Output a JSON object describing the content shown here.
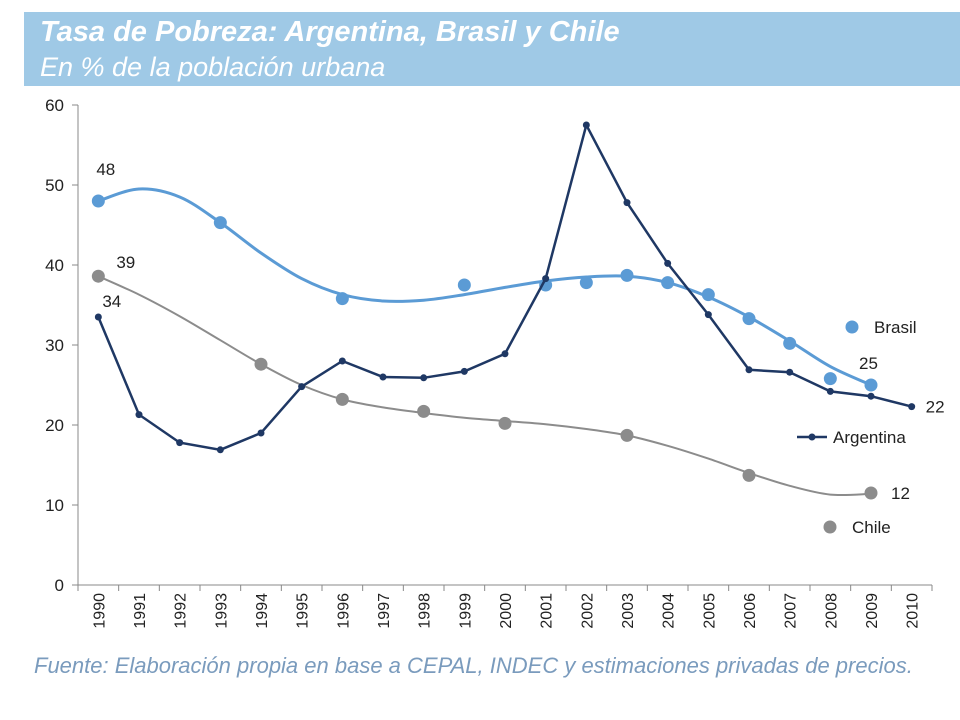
{
  "header": {
    "title": "Tasa de Pobreza: Argentina, Brasil y Chile",
    "subtitle": "En % de la población urbana"
  },
  "footer": {
    "source": "Fuente: Elaboración propia en base a CEPAL, INDEC y estimaciones privadas de precios."
  },
  "colors": {
    "header_bg": "#9fc9e6",
    "brasil": "#5b9bd5",
    "argentina": "#1f3864",
    "chile": "#8c8c8c",
    "source_text": "#7a9bbd"
  },
  "chart_data": {
    "type": "line",
    "xlabel": "",
    "ylabel": "",
    "ylim": [
      0,
      60
    ],
    "yticks": [
      0,
      10,
      20,
      30,
      40,
      50,
      60
    ],
    "x": [
      "1990",
      "1991",
      "1992",
      "1993",
      "1994",
      "1995",
      "1996",
      "1997",
      "1998",
      "1999",
      "2000",
      "2001",
      "2002",
      "2003",
      "2004",
      "2005",
      "2006",
      "2007",
      "2008",
      "2009",
      "2010"
    ],
    "grid": false,
    "series": [
      {
        "name": "Brasil",
        "style": "dots-with-smooth-trend",
        "color": "#5b9bd5",
        "points": [
          {
            "x": "1990",
            "y": 48
          },
          {
            "x": "1993",
            "y": 45.3
          },
          {
            "x": "1996",
            "y": 35.8
          },
          {
            "x": "1999",
            "y": 37.5
          },
          {
            "x": "2001",
            "y": 37.5
          },
          {
            "x": "2002",
            "y": 37.8
          },
          {
            "x": "2003",
            "y": 38.7
          },
          {
            "x": "2004",
            "y": 37.8
          },
          {
            "x": "2005",
            "y": 36.3
          },
          {
            "x": "2006",
            "y": 33.3
          },
          {
            "x": "2007",
            "y": 30.2
          },
          {
            "x": "2008",
            "y": 25.8
          },
          {
            "x": "2009",
            "y": 25
          }
        ],
        "trend": [
          {
            "x": "1990",
            "y": 48
          },
          {
            "x": "1991",
            "y": 49.5
          },
          {
            "x": "1992",
            "y": 48.5
          },
          {
            "x": "1993",
            "y": 45.3
          },
          {
            "x": "1994",
            "y": 41.5
          },
          {
            "x": "1995",
            "y": 38.3
          },
          {
            "x": "1996",
            "y": 36.3
          },
          {
            "x": "1997",
            "y": 35.5
          },
          {
            "x": "1998",
            "y": 35.6
          },
          {
            "x": "1999",
            "y": 36.3
          },
          {
            "x": "2000",
            "y": 37.2
          },
          {
            "x": "2001",
            "y": 38
          },
          {
            "x": "2002",
            "y": 38.5
          },
          {
            "x": "2003",
            "y": 38.6
          },
          {
            "x": "2004",
            "y": 37.8
          },
          {
            "x": "2005",
            "y": 36
          },
          {
            "x": "2006",
            "y": 33.5
          },
          {
            "x": "2007",
            "y": 30.5
          },
          {
            "x": "2008",
            "y": 27.3
          },
          {
            "x": "2009",
            "y": 25
          }
        ],
        "labels": [
          {
            "x": "1990",
            "text": "48"
          },
          {
            "x": "2009",
            "text": "25"
          }
        ]
      },
      {
        "name": "Argentina",
        "style": "line-markers",
        "color": "#1f3864",
        "points": [
          {
            "x": "1990",
            "y": 33.5
          },
          {
            "x": "1991",
            "y": 21.3
          },
          {
            "x": "1992",
            "y": 17.8
          },
          {
            "x": "1993",
            "y": 16.9
          },
          {
            "x": "1994",
            "y": 19
          },
          {
            "x": "1995",
            "y": 24.8
          },
          {
            "x": "1996",
            "y": 28
          },
          {
            "x": "1997",
            "y": 26
          },
          {
            "x": "1998",
            "y": 25.9
          },
          {
            "x": "1999",
            "y": 26.7
          },
          {
            "x": "2000",
            "y": 28.9
          },
          {
            "x": "2001",
            "y": 38.3
          },
          {
            "x": "2002",
            "y": 57.5
          },
          {
            "x": "2003",
            "y": 47.8
          },
          {
            "x": "2004",
            "y": 40.2
          },
          {
            "x": "2005",
            "y": 33.8
          },
          {
            "x": "2006",
            "y": 26.9
          },
          {
            "x": "2007",
            "y": 26.6
          },
          {
            "x": "2008",
            "y": 24.2
          },
          {
            "x": "2009",
            "y": 23.6
          },
          {
            "x": "2010",
            "y": 22.3
          }
        ],
        "labels": [
          {
            "x": "1990",
            "text": "34"
          },
          {
            "x": "2010",
            "text": "22"
          }
        ]
      },
      {
        "name": "Chile",
        "style": "dots-with-smooth-trend",
        "color": "#8c8c8c",
        "points": [
          {
            "x": "1990",
            "y": 38.6
          },
          {
            "x": "1994",
            "y": 27.6
          },
          {
            "x": "1996",
            "y": 23.2
          },
          {
            "x": "1998",
            "y": 21.7
          },
          {
            "x": "2000",
            "y": 20.2
          },
          {
            "x": "2003",
            "y": 18.7
          },
          {
            "x": "2006",
            "y": 13.7
          },
          {
            "x": "2009",
            "y": 11.5
          }
        ],
        "trend": [
          {
            "x": "1990",
            "y": 38.6
          },
          {
            "x": "1991",
            "y": 36.3
          },
          {
            "x": "1992",
            "y": 33.6
          },
          {
            "x": "1993",
            "y": 30.6
          },
          {
            "x": "1994",
            "y": 27.6
          },
          {
            "x": "1995",
            "y": 25
          },
          {
            "x": "1996",
            "y": 23.2
          },
          {
            "x": "1997",
            "y": 22.2
          },
          {
            "x": "1998",
            "y": 21.5
          },
          {
            "x": "1999",
            "y": 20.9
          },
          {
            "x": "2000",
            "y": 20.5
          },
          {
            "x": "2001",
            "y": 20.1
          },
          {
            "x": "2002",
            "y": 19.5
          },
          {
            "x": "2003",
            "y": 18.7
          },
          {
            "x": "2004",
            "y": 17.4
          },
          {
            "x": "2005",
            "y": 15.8
          },
          {
            "x": "2006",
            "y": 14
          },
          {
            "x": "2007",
            "y": 12.4
          },
          {
            "x": "2008",
            "y": 11.3
          },
          {
            "x": "2009",
            "y": 11.4
          }
        ],
        "labels": [
          {
            "x": "1990",
            "text": "39"
          },
          {
            "x": "2009",
            "text": "12"
          }
        ]
      }
    ],
    "legend": [
      {
        "name": "Brasil",
        "marker": "dot"
      },
      {
        "name": "Argentina",
        "marker": "line-dot"
      },
      {
        "name": "Chile",
        "marker": "dot"
      }
    ]
  }
}
